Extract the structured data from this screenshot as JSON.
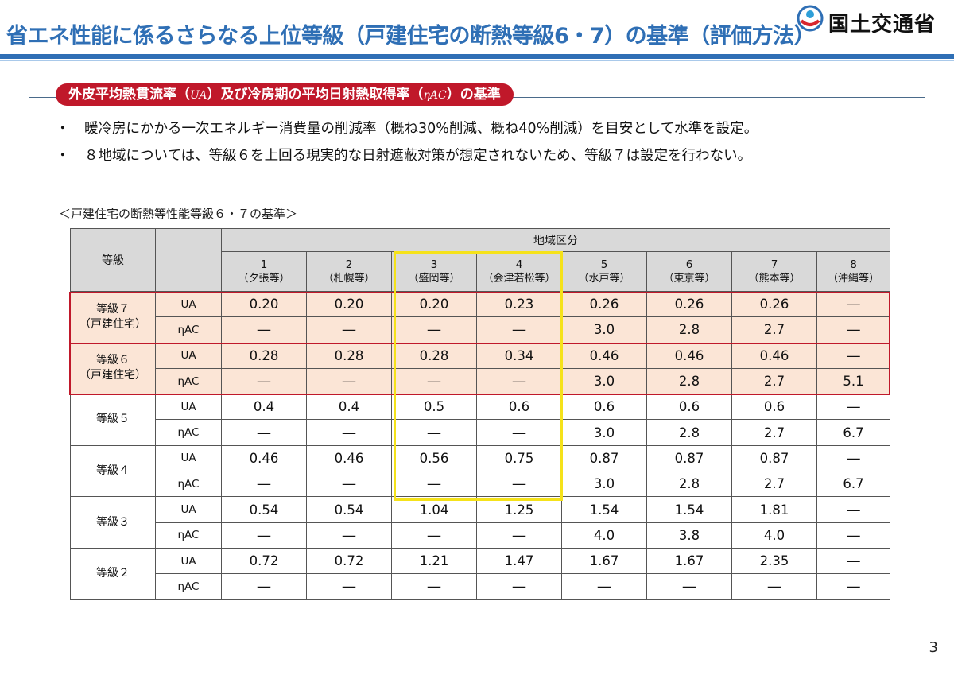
{
  "header": {
    "title": "省エネ性能に係るさらなる上位等級（戸建住宅の断熱等級6・7）の基準（評価方法）",
    "ministry": "国土交通省"
  },
  "criteria": {
    "label_prefix": "外皮平均熱貫流率（",
    "label_ua": "UA",
    "label_mid": "）及び冷房期の平均日射熱取得率（",
    "label_eta": "ηAC",
    "label_suffix": "）の基準",
    "bullet_mark": "・",
    "bullets": [
      "暖冷房にかかる一次エネルギー消費量の削減率（概ね30%削減、概ね40%削減）を目安として水準を設定。",
      "８地域については、等級６を上回る現実的な日射遮蔽対策が想定されないため、等級７は設定を行わない。"
    ]
  },
  "table": {
    "caption": "＜戸建住宅の断熱等性能等級６・７の基準＞",
    "header_grade": "等級",
    "header_region": "地域区分",
    "regions": [
      {
        "num": "1",
        "name": "（夕張等）"
      },
      {
        "num": "2",
        "name": "（札幌等）"
      },
      {
        "num": "3",
        "name": "（盛岡等）"
      },
      {
        "num": "4",
        "name": "（会津若松等）"
      },
      {
        "num": "5",
        "name": "（水戸等）"
      },
      {
        "num": "6",
        "name": "（東京等）"
      },
      {
        "num": "7",
        "name": "（熊本等）"
      },
      {
        "num": "8",
        "name": "（沖縄等）"
      }
    ],
    "grades": [
      {
        "name": "等級７",
        "sub": "（戸建住宅）",
        "highlight": true,
        "ua": [
          "0.20",
          "0.20",
          "0.20",
          "0.23",
          "0.26",
          "0.26",
          "0.26",
          "―"
        ],
        "eta": [
          "―",
          "―",
          "―",
          "―",
          "3.0",
          "2.8",
          "2.7",
          "―"
        ]
      },
      {
        "name": "等級６",
        "sub": "（戸建住宅）",
        "highlight": true,
        "ua": [
          "0.28",
          "0.28",
          "0.28",
          "0.34",
          "0.46",
          "0.46",
          "0.46",
          "―"
        ],
        "eta": [
          "―",
          "―",
          "―",
          "―",
          "3.0",
          "2.8",
          "2.7",
          "5.1"
        ]
      },
      {
        "name": "等級５",
        "sub": "",
        "highlight": false,
        "ua": [
          "0.4",
          "0.4",
          "0.5",
          "0.6",
          "0.6",
          "0.6",
          "0.6",
          "―"
        ],
        "eta": [
          "―",
          "―",
          "―",
          "―",
          "3.0",
          "2.8",
          "2.7",
          "6.7"
        ]
      },
      {
        "name": "等級４",
        "sub": "",
        "highlight": false,
        "ua": [
          "0.46",
          "0.46",
          "0.56",
          "0.75",
          "0.87",
          "0.87",
          "0.87",
          "―"
        ],
        "eta": [
          "―",
          "―",
          "―",
          "―",
          "3.0",
          "2.8",
          "2.7",
          "6.7"
        ]
      },
      {
        "name": "等級３",
        "sub": "",
        "highlight": false,
        "ua": [
          "0.54",
          "0.54",
          "1.04",
          "1.25",
          "1.54",
          "1.54",
          "1.81",
          "―"
        ],
        "eta": [
          "―",
          "―",
          "―",
          "―",
          "4.0",
          "3.8",
          "4.0",
          "―"
        ]
      },
      {
        "name": "等級２",
        "sub": "",
        "highlight": false,
        "ua": [
          "0.72",
          "0.72",
          "1.21",
          "1.47",
          "1.67",
          "1.67",
          "2.35",
          "―"
        ],
        "eta": [
          "―",
          "―",
          "―",
          "―",
          "―",
          "―",
          "―",
          "―"
        ]
      }
    ],
    "metric_ua": "UA",
    "metric_eta": "ηAC"
  },
  "page_number": "3",
  "colors": {
    "title_blue": "#2f6fb5",
    "accent_red": "#c0182a",
    "highlight_yellow": "#f5e21a",
    "highlight_row_bg": "#fbe5d6",
    "header_gray": "#d9d9d9"
  }
}
